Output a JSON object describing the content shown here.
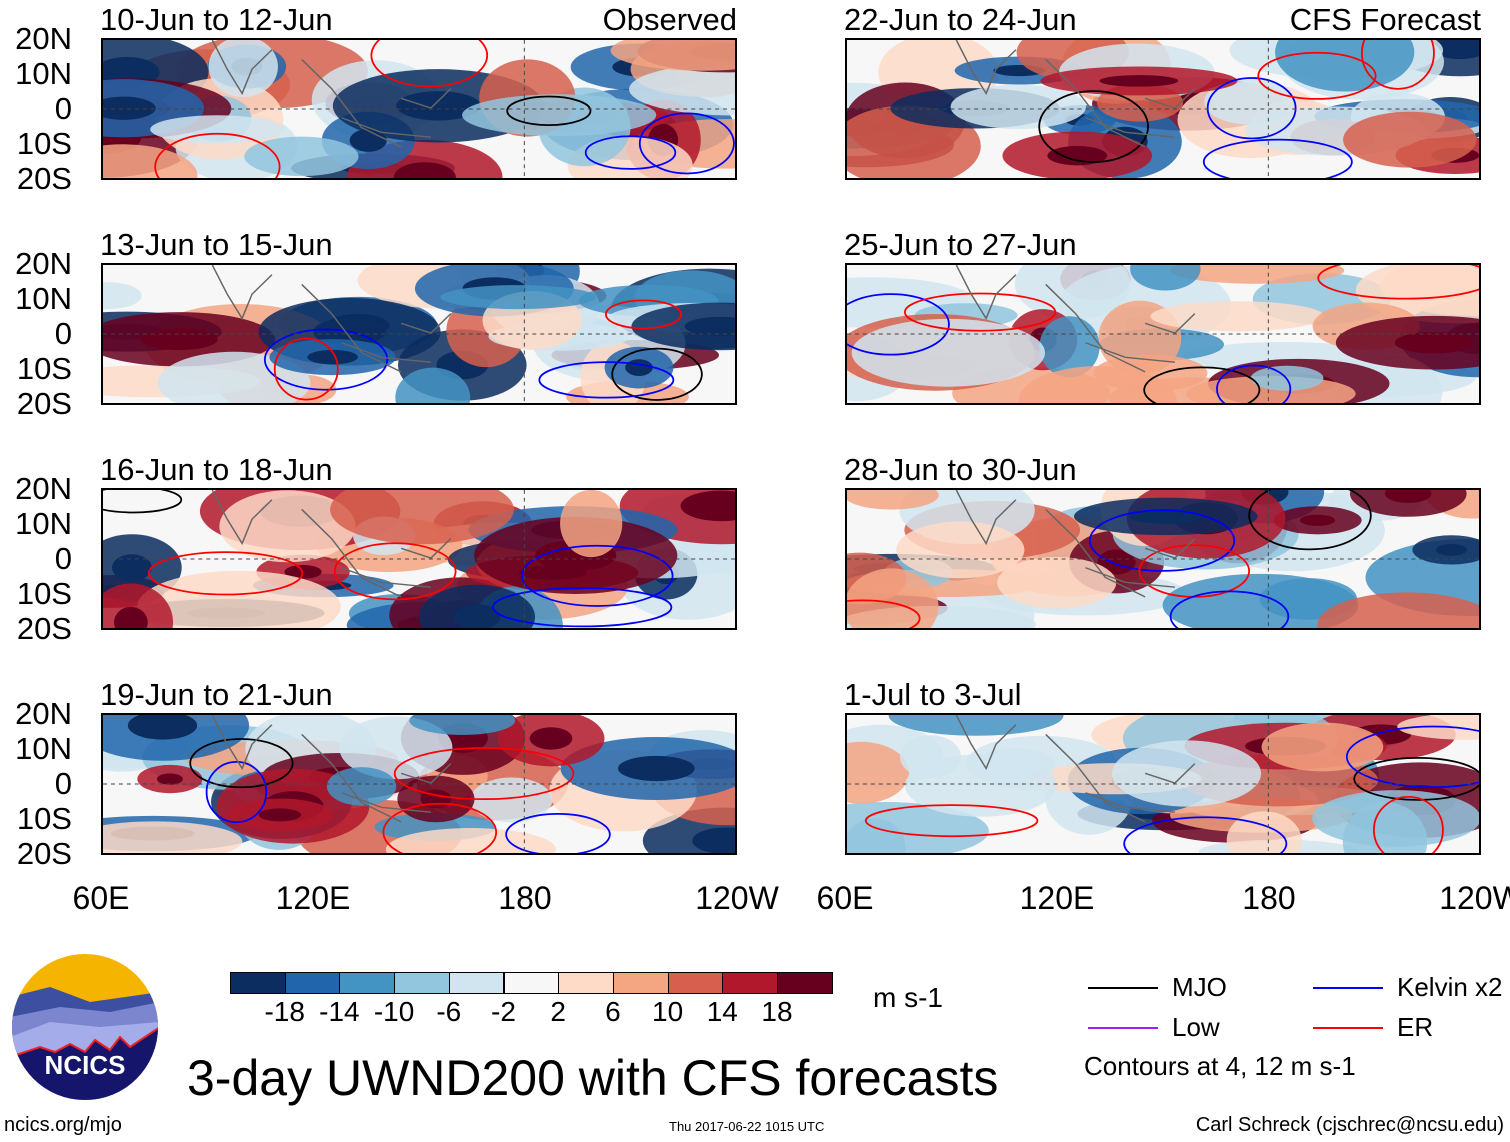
{
  "panels": [
    {
      "title": "10-Jun to 12-Jun",
      "tag": "Observed"
    },
    {
      "title": "13-Jun to 15-Jun"
    },
    {
      "title": "16-Jun to 18-Jun"
    },
    {
      "title": "19-Jun to 21-Jun"
    },
    {
      "title": "22-Jun to 24-Jun",
      "tag": "CFS Forecast"
    },
    {
      "title": "25-Jun to 27-Jun"
    },
    {
      "title": "28-Jun to 30-Jun"
    },
    {
      "title": "1-Jul to 3-Jul"
    }
  ],
  "lat_labels": [
    "20N",
    "10N",
    "0",
    "10S",
    "20S"
  ],
  "lon_labels": [
    "60E",
    "120E",
    "180",
    "120W"
  ],
  "colorbar": {
    "labels": [
      "-18",
      "-14",
      "-10",
      "-6",
      "-2",
      "2",
      "6",
      "10",
      "14",
      "18"
    ],
    "colors": [
      "#0b2d5f",
      "#2166ac",
      "#4393c3",
      "#92c5de",
      "#d1e5f0",
      "#f7f7f7",
      "#fddbc7",
      "#f4a582",
      "#d6604d",
      "#b2182b",
      "#67001f"
    ],
    "units": "m s-1"
  },
  "legend": {
    "items": [
      {
        "label": "MJO",
        "color": "#000000"
      },
      {
        "label": "Kelvin x2",
        "color": "#0000ff"
      },
      {
        "label": "Low",
        "color": "#a020f0"
      },
      {
        "label": "ER",
        "color": "#ff0000"
      }
    ],
    "contours_note": "Contours at 4, 12 m s-1"
  },
  "title": "3-day UWND200 with CFS forecasts",
  "logo_text": "NCICS",
  "footer": {
    "url": "ncics.org/mjo",
    "timestamp": "Thu 2017-06-22 1015 UTC",
    "credit": "Carl Schreck (cjschrec@ncsu.edu)"
  }
}
